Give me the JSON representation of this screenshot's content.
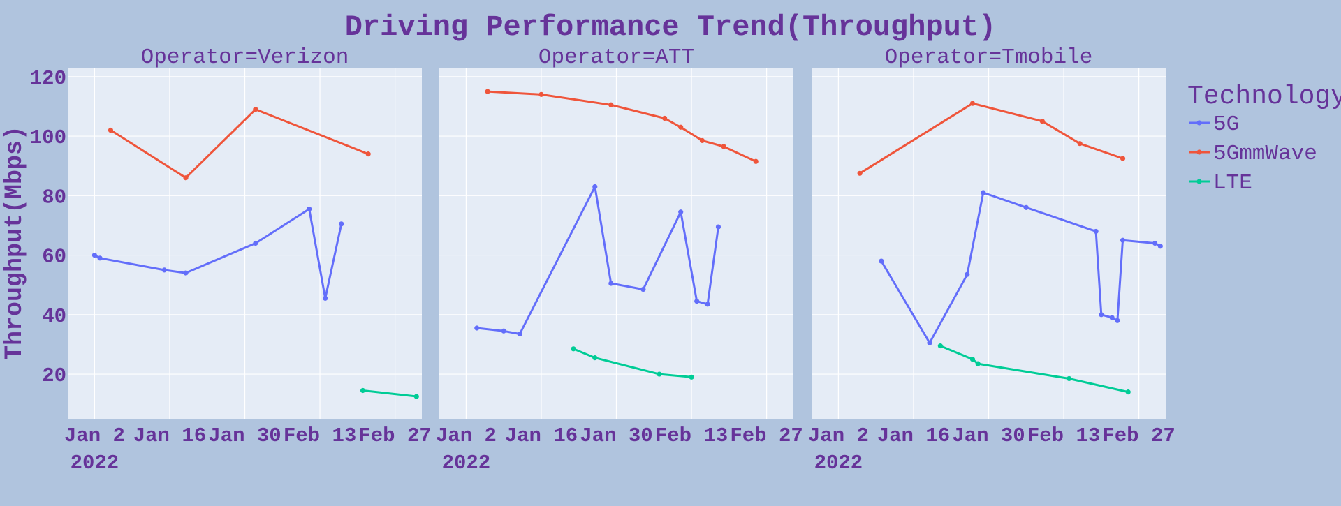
{
  "colors": {
    "page_bg": "#b0c4de",
    "plot_bg": "#e5ecf6",
    "grid": "#ffffff",
    "text": "#663399"
  },
  "chart_data": {
    "type": "line",
    "title": "Driving Performance Trend(Throughput)",
    "ylabel": "Throughput(Mbps)",
    "xlabel": "",
    "ylim": [
      5,
      123
    ],
    "yticks": [
      20,
      40,
      60,
      80,
      100,
      120
    ],
    "xlim": [
      "2021-12-28",
      "2022-03-04"
    ],
    "xticks": [
      {
        "date": "2022-01-02",
        "label": "Jan 2",
        "sub": "2022"
      },
      {
        "date": "2022-01-16",
        "label": "Jan 16",
        "sub": ""
      },
      {
        "date": "2022-01-30",
        "label": "Jan 30",
        "sub": ""
      },
      {
        "date": "2022-02-13",
        "label": "Feb 13",
        "sub": ""
      },
      {
        "date": "2022-02-27",
        "label": "Feb 27",
        "sub": ""
      }
    ],
    "legend": {
      "title": "Technology",
      "placement": "right",
      "items": [
        {
          "name": "5G",
          "color": "#636efa"
        },
        {
          "name": "5GmmWave",
          "color": "#ef553b"
        },
        {
          "name": "LTE",
          "color": "#00cc96"
        }
      ]
    },
    "panels": [
      {
        "title": "Operator=Verizon",
        "series": [
          {
            "name": "5G",
            "points": [
              [
                "2022-01-02",
                60
              ],
              [
                "2022-01-03",
                59
              ],
              [
                "2022-01-15",
                55
              ],
              [
                "2022-01-19",
                54
              ],
              [
                "2022-02-01",
                64
              ],
              [
                "2022-02-11",
                75.5
              ],
              [
                "2022-02-14",
                45.5
              ],
              [
                "2022-02-17",
                70.5
              ]
            ]
          },
          {
            "name": "5GmmWave",
            "points": [
              [
                "2022-01-05",
                102
              ],
              [
                "2022-01-19",
                86
              ],
              [
                "2022-02-01",
                109
              ],
              [
                "2022-02-22",
                94
              ]
            ]
          },
          {
            "name": "LTE",
            "points": [
              [
                "2022-02-21",
                14.5
              ],
              [
                "2022-03-03",
                12.5
              ]
            ]
          }
        ]
      },
      {
        "title": "Operator=ATT",
        "series": [
          {
            "name": "5G",
            "points": [
              [
                "2022-01-04",
                35.5
              ],
              [
                "2022-01-09",
                34.5
              ],
              [
                "2022-01-12",
                33.5
              ],
              [
                "2022-01-26",
                83
              ],
              [
                "2022-01-29",
                50.5
              ],
              [
                "2022-02-04",
                48.5
              ],
              [
                "2022-02-11",
                74.5
              ],
              [
                "2022-02-14",
                44.5
              ],
              [
                "2022-02-16",
                43.5
              ],
              [
                "2022-02-18",
                69.5
              ]
            ]
          },
          {
            "name": "5GmmWave",
            "points": [
              [
                "2022-01-06",
                115
              ],
              [
                "2022-01-16",
                114
              ],
              [
                "2022-01-29",
                110.5
              ],
              [
                "2022-02-08",
                106
              ],
              [
                "2022-02-11",
                103
              ],
              [
                "2022-02-15",
                98.5
              ],
              [
                "2022-02-19",
                96.5
              ],
              [
                "2022-02-25",
                91.5
              ]
            ]
          },
          {
            "name": "LTE",
            "points": [
              [
                "2022-01-22",
                28.5
              ],
              [
                "2022-01-26",
                25.5
              ],
              [
                "2022-02-07",
                20
              ],
              [
                "2022-02-13",
                19
              ]
            ]
          }
        ]
      },
      {
        "title": "Operator=Tmobile",
        "series": [
          {
            "name": "5G",
            "points": [
              [
                "2022-01-10",
                58
              ],
              [
                "2022-01-19",
                30.5
              ],
              [
                "2022-01-26",
                53.5
              ],
              [
                "2022-01-29",
                81
              ],
              [
                "2022-02-06",
                76
              ],
              [
                "2022-02-19",
                68
              ],
              [
                "2022-02-20",
                40
              ],
              [
                "2022-02-22",
                39
              ],
              [
                "2022-02-23",
                38
              ],
              [
                "2022-02-24",
                65
              ],
              [
                "2022-03-02",
                64
              ],
              [
                "2022-03-03",
                63
              ]
            ]
          },
          {
            "name": "5GmmWave",
            "points": [
              [
                "2022-01-06",
                87.5
              ],
              [
                "2022-01-27",
                111
              ],
              [
                "2022-02-09",
                105
              ],
              [
                "2022-02-16",
                97.5
              ],
              [
                "2022-02-24",
                92.5
              ]
            ]
          },
          {
            "name": "LTE",
            "points": [
              [
                "2022-01-21",
                29.5
              ],
              [
                "2022-01-27",
                25
              ],
              [
                "2022-01-28",
                23.5
              ],
              [
                "2022-02-14",
                18.5
              ],
              [
                "2022-02-25",
                14
              ]
            ]
          }
        ]
      }
    ]
  }
}
